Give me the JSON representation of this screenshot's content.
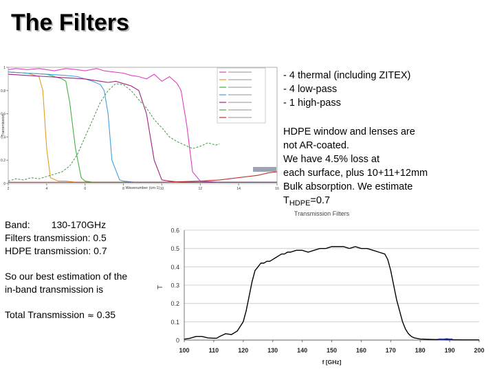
{
  "slide": {
    "title": "The Filters"
  },
  "right_notes": {
    "filter_list": [
      "- 4 thermal (including ZITEX)",
      "- 4 low-pass",
      "- 1 high-pass"
    ],
    "hdpe_lines": [
      "HDPE window and lenses are",
      "not AR-coated.",
      "We have 4.5% loss at",
      "each surface, plus 10+11+12mm",
      "Bulk absorption. We estimate"
    ],
    "thdpe_T": "T",
    "thdpe_sub": "HDPE",
    "thdpe_value": "=0.7"
  },
  "left_notes": {
    "band": "Band:        130-170GHz",
    "filters_transmission": "Filters transmission: 0.5",
    "hdpe_transmission": "HDPE transmission: 0.7",
    "estimation_line1": "So our best estimation of the",
    "estimation_line2": "in-band transmission is",
    "total_label": "Total Transmission",
    "total_symbol": "≈",
    "total_value": "0.35"
  },
  "chart_data": [
    {
      "type": "line",
      "title": "",
      "xlabel": "Wavenumber (cm-1)",
      "ylabel": "Transmission",
      "xlim": [
        2,
        16
      ],
      "ylim": [
        0,
        1
      ],
      "xticks": [
        "2",
        "4",
        "6",
        "8",
        "10",
        "12",
        "14",
        "16"
      ],
      "yticks": [
        "0",
        "0.2",
        "0.4",
        "0.6",
        "0.8",
        "1"
      ],
      "grid": false,
      "legend_position": "top-right",
      "legend_note": "legend text too small to read",
      "series": [
        {
          "color": "#e040c0",
          "x": [
            2,
            2.4,
            3,
            3.6,
            4,
            4.4,
            5,
            5.6,
            6,
            6.6,
            7,
            7.5,
            8,
            8.4,
            8.8,
            9.2,
            9.6,
            10,
            10.4,
            10.8,
            11,
            11.3,
            11.6,
            12,
            13,
            14,
            15,
            16
          ],
          "y": [
            0.98,
            0.99,
            0.98,
            0.99,
            0.98,
            0.97,
            0.99,
            0.98,
            0.97,
            0.99,
            0.97,
            0.96,
            0.95,
            0.93,
            0.92,
            0.9,
            0.94,
            0.88,
            0.92,
            0.86,
            0.8,
            0.5,
            0.1,
            0.02,
            0.01,
            0.01,
            0.01,
            0.01
          ]
        },
        {
          "color": "#e0a020",
          "x": [
            2,
            3,
            3.6,
            3.8,
            4,
            4.2,
            4.6,
            5,
            5.5,
            6,
            7,
            8,
            10,
            12,
            14,
            16
          ],
          "y": [
            0.96,
            0.95,
            0.92,
            0.8,
            0.3,
            0.05,
            0.02,
            0.02,
            0.01,
            0.01,
            0.01,
            0.01,
            0.01,
            0.01,
            0.01,
            0.01
          ]
        },
        {
          "color": "#40b040",
          "x": [
            2,
            3,
            4,
            4.4,
            4.8,
            5,
            5.2,
            5.5,
            5.8,
            6,
            6.4,
            6.8,
            7,
            8,
            10,
            12,
            14,
            16
          ],
          "y": [
            0.96,
            0.95,
            0.94,
            0.92,
            0.9,
            0.88,
            0.7,
            0.3,
            0.05,
            0.02,
            0.01,
            0.01,
            0.01,
            0.01,
            0.01,
            0.01,
            0.01,
            0.01
          ]
        },
        {
          "color": "#40a0e0",
          "x": [
            2,
            3,
            4,
            5,
            5.6,
            6,
            6.4,
            6.8,
            7,
            7.2,
            7.4,
            7.8,
            8,
            8.6,
            10,
            12,
            14,
            16
          ],
          "y": [
            0.96,
            0.95,
            0.94,
            0.93,
            0.92,
            0.9,
            0.88,
            0.85,
            0.8,
            0.6,
            0.2,
            0.03,
            0.02,
            0.01,
            0.01,
            0.01,
            0.01,
            0.01
          ]
        },
        {
          "color": "#a02080",
          "x": [
            2,
            3,
            4,
            5,
            6,
            6.8,
            7.2,
            7.6,
            8,
            8.4,
            8.8,
            9.2,
            9.6,
            10,
            10.4,
            11,
            12,
            14,
            16
          ],
          "y": [
            0.94,
            0.93,
            0.92,
            0.91,
            0.9,
            0.88,
            0.87,
            0.88,
            0.86,
            0.84,
            0.8,
            0.6,
            0.2,
            0.03,
            0.02,
            0.01,
            0.01,
            0.01,
            0.01
          ]
        },
        {
          "color": "#50a050",
          "x": [
            2,
            2.4,
            2.8,
            3.2,
            3.6,
            4,
            4.4,
            4.8,
            5.2,
            5.6,
            6,
            6.4,
            6.8,
            7.2,
            7.6,
            8,
            8.4,
            8.8,
            9.2,
            9.6,
            10,
            10.4,
            10.8,
            11.2,
            11.6,
            12,
            12.4,
            12.8,
            13
          ],
          "y": [
            0.02,
            0.04,
            0.03,
            0.05,
            0.04,
            0.06,
            0.08,
            0.1,
            0.15,
            0.25,
            0.4,
            0.55,
            0.7,
            0.8,
            0.86,
            0.85,
            0.8,
            0.72,
            0.65,
            0.55,
            0.48,
            0.4,
            0.36,
            0.33,
            0.3,
            0.32,
            0.35,
            0.33,
            0.34
          ]
        },
        {
          "color": "#c03030",
          "x": [
            2,
            4,
            6,
            8,
            10,
            12,
            13,
            14,
            15,
            15.5,
            16
          ],
          "y": [
            0.01,
            0.01,
            0.01,
            0.01,
            0.01,
            0.02,
            0.03,
            0.05,
            0.07,
            0.09,
            0.1
          ]
        }
      ]
    },
    {
      "type": "line",
      "title": "Transmission Filters",
      "xlabel": "f [GHz]",
      "ylabel": "T",
      "xlim": [
        100,
        200
      ],
      "ylim": [
        0,
        0.6
      ],
      "xticks": [
        "100",
        "110",
        "120",
        "130",
        "140",
        "150",
        "160",
        "170",
        "180",
        "190",
        "200"
      ],
      "yticks": [
        "0",
        "0.1",
        "0.2",
        "0.3",
        "0.4",
        "0.5",
        "0.6"
      ],
      "grid": true,
      "series": [
        {
          "color": "#000000",
          "x": [
            100,
            102,
            104,
            106,
            108,
            110,
            111,
            112,
            114,
            116,
            118,
            120,
            121,
            122,
            123,
            124,
            125,
            126,
            127,
            128,
            129,
            130,
            131,
            132,
            133,
            134,
            135,
            136,
            138,
            140,
            142,
            144,
            146,
            148,
            150,
            152,
            154,
            156,
            158,
            160,
            162,
            164,
            166,
            168,
            169,
            170,
            171,
            172,
            173,
            174,
            175,
            176,
            177,
            178,
            180,
            185,
            190,
            195,
            200
          ],
          "y": [
            0.005,
            0.01,
            0.02,
            0.02,
            0.012,
            0.01,
            0.01,
            0.02,
            0.035,
            0.03,
            0.05,
            0.1,
            0.16,
            0.24,
            0.32,
            0.38,
            0.4,
            0.42,
            0.42,
            0.43,
            0.43,
            0.44,
            0.45,
            0.46,
            0.47,
            0.47,
            0.48,
            0.48,
            0.49,
            0.49,
            0.48,
            0.49,
            0.5,
            0.5,
            0.51,
            0.51,
            0.51,
            0.5,
            0.51,
            0.5,
            0.5,
            0.49,
            0.48,
            0.47,
            0.44,
            0.38,
            0.3,
            0.22,
            0.16,
            0.1,
            0.06,
            0.035,
            0.02,
            0.012,
            0.006,
            0.003,
            0.002,
            0.001,
            0.001
          ]
        },
        {
          "color": "#2030a0",
          "x": [
            186,
            187,
            188,
            189,
            190,
            191
          ],
          "y": [
            0.004,
            0.005,
            0.004,
            0.006,
            0.004,
            0.005
          ]
        }
      ]
    }
  ]
}
